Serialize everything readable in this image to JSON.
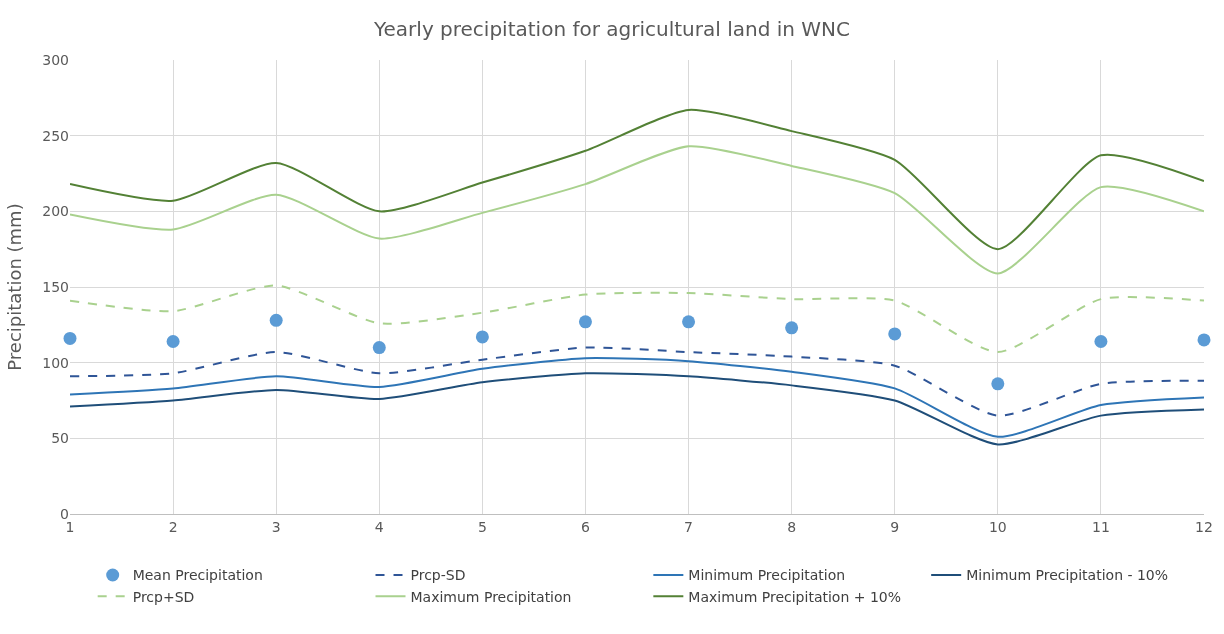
{
  "chart_data": {
    "type": "line",
    "title": "Yearly precipitation for agricultural land in WNC",
    "ylabel": "Precipitation (mm)",
    "x": [
      1,
      2,
      3,
      4,
      5,
      6,
      7,
      8,
      9,
      10,
      11,
      12
    ],
    "xlim": [
      1,
      12
    ],
    "xticks": [
      1,
      2,
      3,
      4,
      5,
      6,
      7,
      8,
      9,
      10,
      11,
      12
    ],
    "ylim": [
      0,
      300
    ],
    "yticks": [
      0,
      50,
      100,
      150,
      200,
      250,
      300
    ],
    "grid": true,
    "legend": "bottom",
    "series": [
      {
        "name": "Mean Precipitation",
        "type": "scatter",
        "marker": "circle",
        "color": "#5b9bd5",
        "values": [
          116,
          114,
          128,
          110,
          117,
          127,
          127,
          123,
          119,
          86,
          114,
          115
        ]
      },
      {
        "name": "Prcp-SD",
        "line_style": "dashed",
        "color": "#2f5597",
        "values": [
          91,
          93,
          107,
          93,
          102,
          110,
          107,
          104,
          98,
          65,
          86,
          88
        ]
      },
      {
        "name": "Minimum Precipitation",
        "line_style": "solid",
        "color": "#2e75b6",
        "values": [
          79,
          83,
          91,
          84,
          96,
          103,
          101,
          94,
          83,
          51,
          72,
          77
        ]
      },
      {
        "name": "Minimum Precipitation - 10%",
        "line_style": "solid",
        "color": "#1f4e79",
        "values": [
          71,
          75,
          82,
          76,
          87,
          93,
          91,
          85,
          75,
          46,
          65,
          69
        ]
      },
      {
        "name": "Prcp+SD",
        "line_style": "dashed",
        "color": "#a9d18e",
        "values": [
          141,
          134,
          151,
          126,
          133,
          145,
          146,
          142,
          141,
          107,
          142,
          141
        ]
      },
      {
        "name": "Maximum Precipitation",
        "line_style": "solid",
        "color": "#a9d18e",
        "values": [
          198,
          188,
          211,
          182,
          199,
          218,
          243,
          230,
          212,
          159,
          216,
          200
        ]
      },
      {
        "name": "Maximum Precipitation + 10%",
        "line_style": "solid",
        "color": "#538135",
        "values": [
          218,
          207,
          232,
          200,
          219,
          240,
          267,
          253,
          234,
          175,
          237,
          220
        ]
      }
    ]
  }
}
